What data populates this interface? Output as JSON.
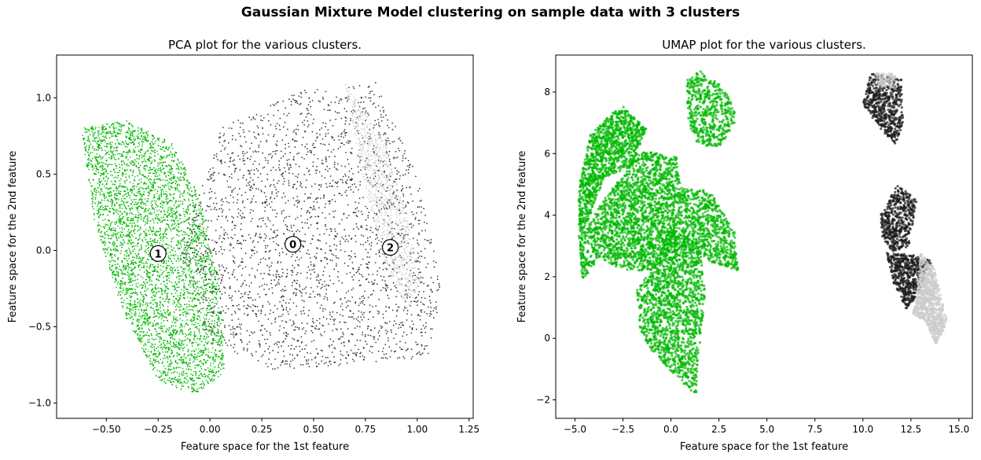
{
  "figure": {
    "suptitle": "Gaussian Mixture Model clustering on sample data with 3 clusters",
    "colors": {
      "cluster_0": "#1a1a1a",
      "cluster_1": "#00b800",
      "cluster_2": "#cccccc"
    }
  },
  "chart_data": [
    {
      "type": "scatter",
      "title": "PCA plot for the various clusters.",
      "xlabel": "Feature space for the 1st feature",
      "ylabel": "Feature space for the 2nd feature",
      "xlim": [
        -0.74,
        1.27
      ],
      "ylim": [
        -1.1,
        1.28
      ],
      "xticks": [
        -0.5,
        -0.25,
        0.0,
        0.25,
        0.5,
        0.75,
        1.0,
        1.25
      ],
      "xtick_labels": [
        "−0.50",
        "−0.25",
        "0.00",
        "0.25",
        "0.50",
        "0.75",
        "1.00",
        "1.25"
      ],
      "yticks": [
        -1.0,
        -0.5,
        0.0,
        0.5,
        1.0
      ],
      "ytick_labels": [
        "−1.0",
        "−0.5",
        "0.0",
        "0.5",
        "1.0"
      ],
      "grid": false,
      "series": [
        {
          "cluster": "1",
          "color": "#00b800",
          "approx_points": 6000,
          "region_outline": [
            [
              -0.62,
              0.8
            ],
            [
              -0.4,
              0.85
            ],
            [
              -0.18,
              0.7
            ],
            [
              -0.05,
              0.35
            ],
            [
              0.05,
              -0.25
            ],
            [
              0.07,
              -0.8
            ],
            [
              -0.08,
              -0.95
            ],
            [
              -0.25,
              -0.85
            ],
            [
              -0.42,
              -0.4
            ],
            [
              -0.56,
              0.2
            ]
          ]
        },
        {
          "cluster": "0",
          "color": "#1a1a1a",
          "approx_points": 2600,
          "region_outline": [
            [
              0.05,
              0.8
            ],
            [
              0.45,
              1.05
            ],
            [
              0.8,
              1.1
            ],
            [
              1.0,
              0.5
            ],
            [
              1.12,
              -0.25
            ],
            [
              1.05,
              -0.7
            ],
            [
              0.7,
              -0.75
            ],
            [
              0.3,
              -0.78
            ],
            [
              0.0,
              -0.6
            ],
            [
              -0.15,
              0.0
            ]
          ]
        },
        {
          "cluster": "2",
          "color": "#cccccc",
          "approx_points": 900,
          "region_outline": [
            [
              0.65,
              1.1
            ],
            [
              0.85,
              0.7
            ],
            [
              0.95,
              0.2
            ],
            [
              1.02,
              -0.2
            ],
            [
              0.95,
              -0.4
            ],
            [
              0.85,
              -0.1
            ],
            [
              0.75,
              0.4
            ]
          ]
        }
      ],
      "centroid_markers": [
        {
          "label": "0",
          "x": 0.4,
          "y": 0.04
        },
        {
          "label": "1",
          "x": -0.25,
          "y": -0.02
        },
        {
          "label": "2",
          "x": 0.87,
          "y": 0.02
        }
      ]
    },
    {
      "type": "scatter",
      "title": "UMAP plot for the various clusters.",
      "xlabel": "Feature space for the 1st feature",
      "ylabel": "Feature space for the 2nd feature",
      "xlim": [
        -6.0,
        15.7
      ],
      "ylim": [
        -2.6,
        9.2
      ],
      "xticks": [
        -5.0,
        -2.5,
        0.0,
        2.5,
        5.0,
        7.5,
        10.0,
        12.5,
        15.0
      ],
      "xtick_labels": [
        "−5.0",
        "−2.5",
        "0.0",
        "2.5",
        "5.0",
        "7.5",
        "10.0",
        "12.5",
        "15.0"
      ],
      "yticks": [
        -2,
        0,
        2,
        4,
        6,
        8
      ],
      "ytick_labels": [
        "−2",
        "0",
        "2",
        "4",
        "6",
        "8"
      ],
      "grid": false,
      "series": [
        {
          "cluster": "1",
          "color": "#00b800",
          "approx_points": 6000,
          "regions": [
            [
              [
                -4.8,
                4.9
              ],
              [
                -4.2,
                6.6
              ],
              [
                -2.6,
                7.6
              ],
              [
                -1.3,
                6.8
              ],
              [
                -2.0,
                5.6
              ],
              [
                -3.5,
                5.2
              ],
              [
                -4.2,
                4.0
              ],
              [
                -4.8,
                3.2
              ]
            ],
            [
              [
                -4.8,
                3.2
              ],
              [
                -3.5,
                4.5
              ],
              [
                -1.5,
                6.1
              ],
              [
                0.3,
                5.9
              ],
              [
                0.5,
                4.9
              ],
              [
                2.0,
                4.8
              ],
              [
                3.3,
                3.5
              ],
              [
                3.5,
                2.2
              ],
              [
                2.0,
                2.5
              ],
              [
                0.6,
                3.0
              ],
              [
                -1.0,
                2.2
              ],
              [
                -2.5,
                2.2
              ],
              [
                -3.8,
                2.6
              ],
              [
                -4.6,
                1.8
              ]
            ],
            [
              [
                -1.0,
                2.2
              ],
              [
                0.0,
                3.6
              ],
              [
                1.5,
                3.0
              ],
              [
                1.8,
                1.5
              ],
              [
                1.4,
                -0.8
              ],
              [
                1.3,
                -1.9
              ],
              [
                0.2,
                -1.2
              ],
              [
                -1.0,
                -0.4
              ],
              [
                -1.6,
                0.2
              ],
              [
                -1.8,
                1.6
              ]
            ],
            [
              [
                0.8,
                8.4
              ],
              [
                1.6,
                8.7
              ],
              [
                2.8,
                8.1
              ],
              [
                3.5,
                7.1
              ],
              [
                2.5,
                6.2
              ],
              [
                1.4,
                6.3
              ],
              [
                0.9,
                7.0
              ]
            ]
          ]
        },
        {
          "cluster": "0",
          "color": "#1a1a1a",
          "approx_points": 1500,
          "regions": [
            [
              [
                10.4,
                8.6
              ],
              [
                12.0,
                8.4
              ],
              [
                12.1,
                7.0
              ],
              [
                11.7,
                6.3
              ],
              [
                10.9,
                6.8
              ],
              [
                10.0,
                7.6
              ]
            ],
            [
              [
                10.9,
                4.0
              ],
              [
                11.8,
                5.0
              ],
              [
                12.8,
                4.5
              ],
              [
                12.4,
                3.0
              ],
              [
                11.5,
                2.8
              ],
              [
                11.0,
                3.3
              ]
            ],
            [
              [
                11.2,
                2.8
              ],
              [
                11.6,
                1.8
              ],
              [
                12.3,
                0.9
              ],
              [
                13.0,
                1.6
              ],
              [
                13.6,
                2.5
              ],
              [
                12.6,
                2.7
              ]
            ]
          ]
        },
        {
          "cluster": "2",
          "color": "#cccccc",
          "approx_points": 900,
          "regions": [
            [
              [
                13.0,
                2.8
              ],
              [
                13.7,
                2.3
              ],
              [
                14.4,
                0.5
              ],
              [
                13.8,
                -0.2
              ],
              [
                13.3,
                0.5
              ],
              [
                12.6,
                0.8
              ],
              [
                12.9,
                1.9
              ]
            ],
            [
              [
                10.6,
                8.6
              ],
              [
                11.8,
                8.6
              ],
              [
                11.6,
                8.1
              ],
              [
                10.8,
                8.2
              ]
            ]
          ]
        }
      ]
    }
  ]
}
